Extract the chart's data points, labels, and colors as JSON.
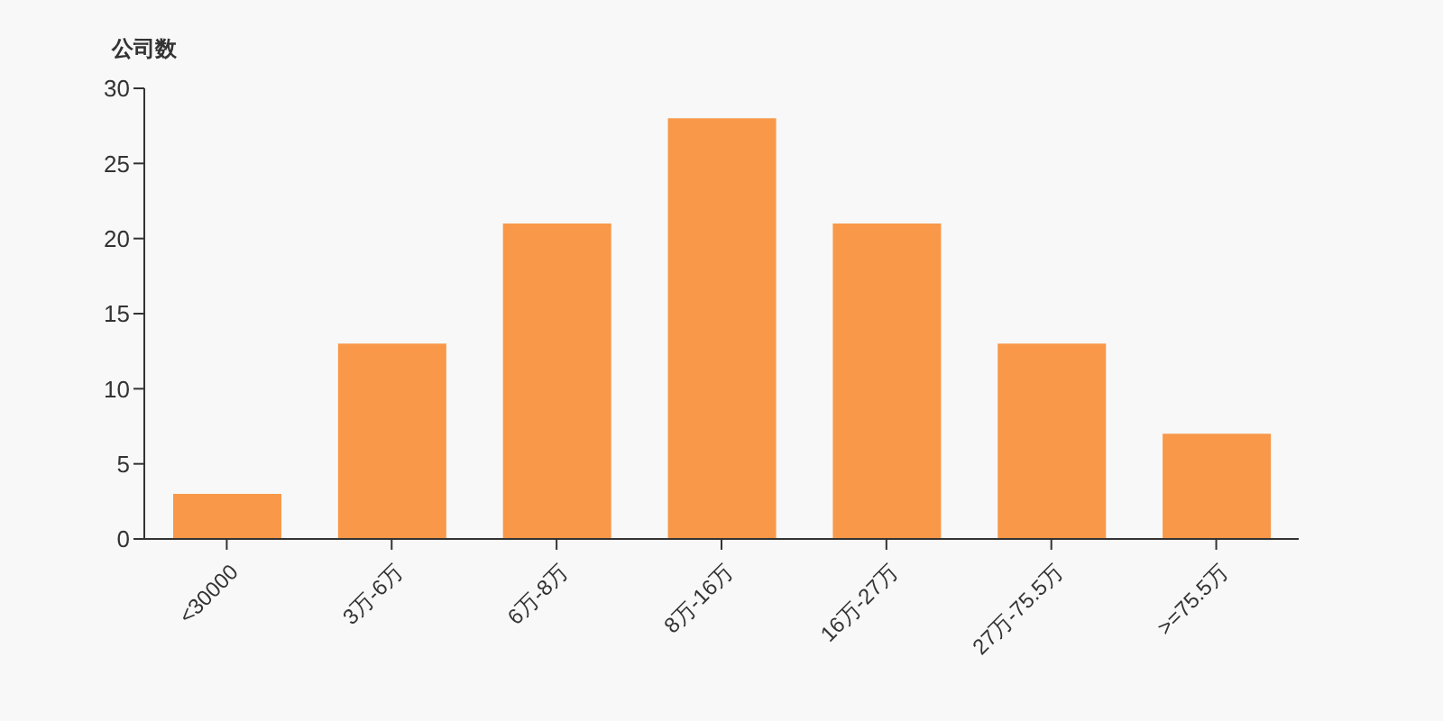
{
  "chart_data": {
    "type": "bar",
    "ylabel": "公司数",
    "categories": [
      "<30000",
      "3万-6万",
      "6万-8万",
      "8万-16万",
      "16万-27万",
      "27万-75.5万",
      ">=75.5万"
    ],
    "values": [
      3,
      13,
      21,
      28,
      21,
      13,
      7
    ],
    "color": "#f89848",
    "ylim": [
      0,
      30
    ],
    "yticks": [
      0,
      5,
      10,
      15,
      20,
      25,
      30
    ],
    "grid": false,
    "legend": false
  }
}
